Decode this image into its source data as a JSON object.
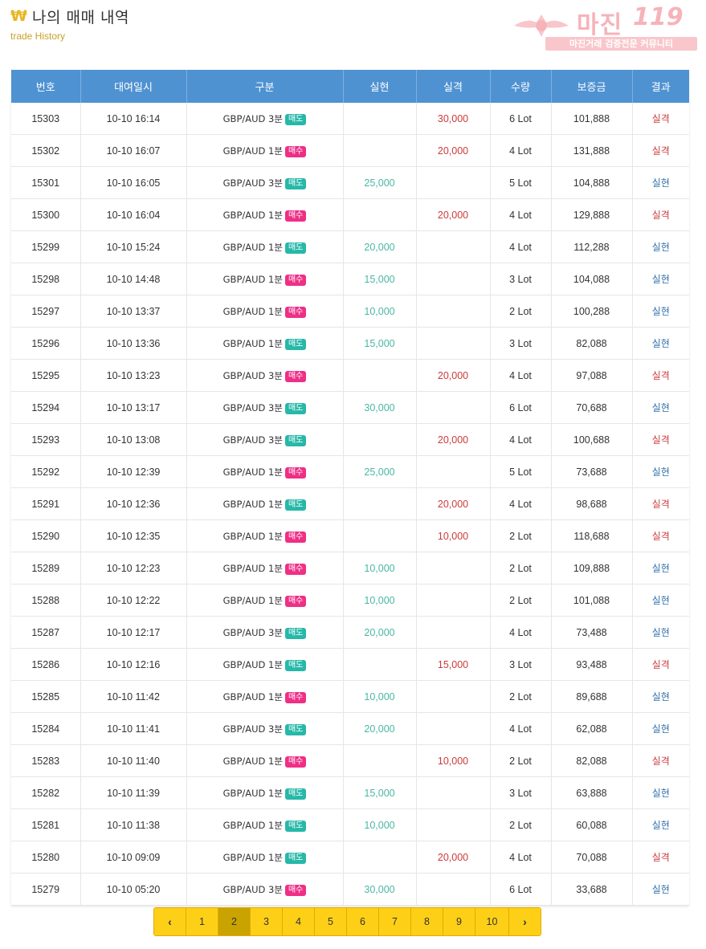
{
  "header": {
    "icon": "won-icon",
    "title": "나의 매매 내역",
    "subtitle": "trade History"
  },
  "logo": {
    "text": "마진",
    "number": "119",
    "tagline": "마진거래 검증전문 커뮤니티",
    "color": "#f6b3b9"
  },
  "table": {
    "columns": [
      "번호",
      "대여일시",
      "구분",
      "실현",
      "실격",
      "수량",
      "보증금",
      "결과"
    ],
    "rows": [
      {
        "no": "15303",
        "date": "10-10 16:14",
        "gubun": "GBP/AUD 3분",
        "badge": "매도",
        "type": "sell",
        "realized": "",
        "lost": "30,000",
        "qty": "6 Lot",
        "deposit": "101,888",
        "result": "실격",
        "res": "loss"
      },
      {
        "no": "15302",
        "date": "10-10 16:07",
        "gubun": "GBP/AUD 1분",
        "badge": "매수",
        "type": "buy",
        "realized": "",
        "lost": "20,000",
        "qty": "4 Lot",
        "deposit": "131,888",
        "result": "실격",
        "res": "loss"
      },
      {
        "no": "15301",
        "date": "10-10 16:05",
        "gubun": "GBP/AUD 3분",
        "badge": "매도",
        "type": "sell",
        "realized": "25,000",
        "lost": "",
        "qty": "5 Lot",
        "deposit": "104,888",
        "result": "실현",
        "res": "win"
      },
      {
        "no": "15300",
        "date": "10-10 16:04",
        "gubun": "GBP/AUD 1분",
        "badge": "매수",
        "type": "buy",
        "realized": "",
        "lost": "20,000",
        "qty": "4 Lot",
        "deposit": "129,888",
        "result": "실격",
        "res": "loss"
      },
      {
        "no": "15299",
        "date": "10-10 15:24",
        "gubun": "GBP/AUD 1분",
        "badge": "매도",
        "type": "sell",
        "realized": "20,000",
        "lost": "",
        "qty": "4 Lot",
        "deposit": "112,288",
        "result": "실현",
        "res": "win"
      },
      {
        "no": "15298",
        "date": "10-10 14:48",
        "gubun": "GBP/AUD 1분",
        "badge": "매수",
        "type": "buy",
        "realized": "15,000",
        "lost": "",
        "qty": "3 Lot",
        "deposit": "104,088",
        "result": "실현",
        "res": "win"
      },
      {
        "no": "15297",
        "date": "10-10 13:37",
        "gubun": "GBP/AUD 1분",
        "badge": "매수",
        "type": "buy",
        "realized": "10,000",
        "lost": "",
        "qty": "2 Lot",
        "deposit": "100,288",
        "result": "실현",
        "res": "win"
      },
      {
        "no": "15296",
        "date": "10-10 13:36",
        "gubun": "GBP/AUD 1분",
        "badge": "매도",
        "type": "sell",
        "realized": "15,000",
        "lost": "",
        "qty": "3 Lot",
        "deposit": "82,088",
        "result": "실현",
        "res": "win"
      },
      {
        "no": "15295",
        "date": "10-10 13:23",
        "gubun": "GBP/AUD 3분",
        "badge": "매수",
        "type": "buy",
        "realized": "",
        "lost": "20,000",
        "qty": "4 Lot",
        "deposit": "97,088",
        "result": "실격",
        "res": "loss"
      },
      {
        "no": "15294",
        "date": "10-10 13:17",
        "gubun": "GBP/AUD 3분",
        "badge": "매도",
        "type": "sell",
        "realized": "30,000",
        "lost": "",
        "qty": "6 Lot",
        "deposit": "70,688",
        "result": "실현",
        "res": "win"
      },
      {
        "no": "15293",
        "date": "10-10 13:08",
        "gubun": "GBP/AUD 3분",
        "badge": "매도",
        "type": "sell",
        "realized": "",
        "lost": "20,000",
        "qty": "4 Lot",
        "deposit": "100,688",
        "result": "실격",
        "res": "loss"
      },
      {
        "no": "15292",
        "date": "10-10 12:39",
        "gubun": "GBP/AUD 1분",
        "badge": "매수",
        "type": "buy",
        "realized": "25,000",
        "lost": "",
        "qty": "5 Lot",
        "deposit": "73,688",
        "result": "실현",
        "res": "win"
      },
      {
        "no": "15291",
        "date": "10-10 12:36",
        "gubun": "GBP/AUD 1분",
        "badge": "매도",
        "type": "sell",
        "realized": "",
        "lost": "20,000",
        "qty": "4 Lot",
        "deposit": "98,688",
        "result": "실격",
        "res": "loss"
      },
      {
        "no": "15290",
        "date": "10-10 12:35",
        "gubun": "GBP/AUD 1분",
        "badge": "매수",
        "type": "buy",
        "realized": "",
        "lost": "10,000",
        "qty": "2 Lot",
        "deposit": "118,688",
        "result": "실격",
        "res": "loss"
      },
      {
        "no": "15289",
        "date": "10-10 12:23",
        "gubun": "GBP/AUD 1분",
        "badge": "매수",
        "type": "buy",
        "realized": "10,000",
        "lost": "",
        "qty": "2 Lot",
        "deposit": "109,888",
        "result": "실현",
        "res": "win"
      },
      {
        "no": "15288",
        "date": "10-10 12:22",
        "gubun": "GBP/AUD 1분",
        "badge": "매수",
        "type": "buy",
        "realized": "10,000",
        "lost": "",
        "qty": "2 Lot",
        "deposit": "101,088",
        "result": "실현",
        "res": "win"
      },
      {
        "no": "15287",
        "date": "10-10 12:17",
        "gubun": "GBP/AUD 3분",
        "badge": "매도",
        "type": "sell",
        "realized": "20,000",
        "lost": "",
        "qty": "4 Lot",
        "deposit": "73,488",
        "result": "실현",
        "res": "win"
      },
      {
        "no": "15286",
        "date": "10-10 12:16",
        "gubun": "GBP/AUD 1분",
        "badge": "매도",
        "type": "sell",
        "realized": "",
        "lost": "15,000",
        "qty": "3 Lot",
        "deposit": "93,488",
        "result": "실격",
        "res": "loss"
      },
      {
        "no": "15285",
        "date": "10-10 11:42",
        "gubun": "GBP/AUD 1분",
        "badge": "매수",
        "type": "buy",
        "realized": "10,000",
        "lost": "",
        "qty": "2 Lot",
        "deposit": "89,688",
        "result": "실현",
        "res": "win"
      },
      {
        "no": "15284",
        "date": "10-10 11:41",
        "gubun": "GBP/AUD 3분",
        "badge": "매도",
        "type": "sell",
        "realized": "20,000",
        "lost": "",
        "qty": "4 Lot",
        "deposit": "62,088",
        "result": "실현",
        "res": "win"
      },
      {
        "no": "15283",
        "date": "10-10 11:40",
        "gubun": "GBP/AUD 1분",
        "badge": "매수",
        "type": "buy",
        "realized": "",
        "lost": "10,000",
        "qty": "2 Lot",
        "deposit": "82,088",
        "result": "실격",
        "res": "loss"
      },
      {
        "no": "15282",
        "date": "10-10 11:39",
        "gubun": "GBP/AUD 1분",
        "badge": "매도",
        "type": "sell",
        "realized": "15,000",
        "lost": "",
        "qty": "3 Lot",
        "deposit": "63,888",
        "result": "실현",
        "res": "win"
      },
      {
        "no": "15281",
        "date": "10-10 11:38",
        "gubun": "GBP/AUD 1분",
        "badge": "매도",
        "type": "sell",
        "realized": "10,000",
        "lost": "",
        "qty": "2 Lot",
        "deposit": "60,088",
        "result": "실현",
        "res": "win"
      },
      {
        "no": "15280",
        "date": "10-10 09:09",
        "gubun": "GBP/AUD 1분",
        "badge": "매도",
        "type": "sell",
        "realized": "",
        "lost": "20,000",
        "qty": "4 Lot",
        "deposit": "70,088",
        "result": "실격",
        "res": "loss"
      },
      {
        "no": "15279",
        "date": "10-10 05:20",
        "gubun": "GBP/AUD 3분",
        "badge": "매수",
        "type": "buy",
        "realized": "30,000",
        "lost": "",
        "qty": "6 Lot",
        "deposit": "33,688",
        "result": "실현",
        "res": "win"
      }
    ]
  },
  "pagination": {
    "prev_icon": "chevron-left-icon",
    "next_icon": "chevron-right-icon",
    "pages": [
      "1",
      "2",
      "3",
      "4",
      "5",
      "6",
      "7",
      "8",
      "9",
      "10"
    ],
    "current": "2"
  },
  "colors": {
    "header_bg": "#4f92d2",
    "win": "#4bb6a4",
    "loss": "#cc3a3a",
    "sell_badge": "#26b8a8",
    "buy_badge": "#ef2f86",
    "pagination": "#fdd017",
    "pagination_active": "#c9a300"
  }
}
